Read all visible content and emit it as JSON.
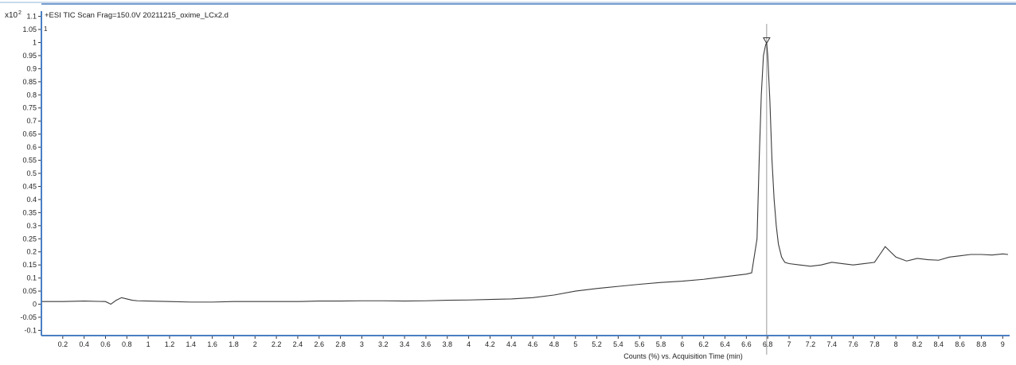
{
  "chart_data": {
    "type": "line",
    "title": "+ESI TIC Scan Frag=150.0V 20211215_oxime_LCx2.d",
    "ylabel_multiplier": "x10",
    "ylabel_exponent": "2",
    "panel_index": "1",
    "xlabel": "Counts (%) vs. Acquisition Time (min)",
    "xlim": [
      0,
      9.05
    ],
    "ylim": [
      -0.12,
      1.12
    ],
    "x_ticks": [
      0.2,
      0.4,
      0.6,
      0.8,
      1,
      1.2,
      1.4,
      1.6,
      1.8,
      2,
      2.2,
      2.4,
      2.6,
      2.8,
      3,
      3.2,
      3.4,
      3.6,
      3.8,
      4,
      4.2,
      4.4,
      4.6,
      4.8,
      5,
      5.2,
      5.4,
      5.6,
      5.8,
      6,
      6.2,
      6.4,
      6.6,
      6.8,
      7,
      7.2,
      7.4,
      7.6,
      7.8,
      8,
      8.2,
      8.4,
      8.6,
      8.8,
      9
    ],
    "y_ticks": [
      -0.1,
      -0.05,
      0,
      0.05,
      0.1,
      0.15,
      0.2,
      0.25,
      0.3,
      0.35,
      0.4,
      0.45,
      0.5,
      0.55,
      0.6,
      0.65,
      0.7,
      0.75,
      0.8,
      0.85,
      0.9,
      0.95,
      1,
      1.05,
      1.1
    ],
    "peak_marker": {
      "x": 6.79,
      "y": 1.0
    },
    "cursor_x": 6.79,
    "series": [
      {
        "x": [
          0,
          0.2,
          0.4,
          0.6,
          0.65,
          0.7,
          0.75,
          0.8,
          0.85,
          0.9,
          1.0,
          1.2,
          1.4,
          1.6,
          1.8,
          2.0,
          2.2,
          2.4,
          2.6,
          2.8,
          3.0,
          3.2,
          3.4,
          3.6,
          3.8,
          4.0,
          4.2,
          4.4,
          4.6,
          4.8,
          5.0,
          5.2,
          5.4,
          5.6,
          5.8,
          6.0,
          6.2,
          6.4,
          6.6,
          6.65,
          6.7,
          6.72,
          6.74,
          6.76,
          6.78,
          6.79,
          6.8,
          6.82,
          6.84,
          6.86,
          6.88,
          6.9,
          6.93,
          6.96,
          7.0,
          7.1,
          7.2,
          7.3,
          7.4,
          7.5,
          7.6,
          7.7,
          7.8,
          7.85,
          7.9,
          7.95,
          8.0,
          8.1,
          8.2,
          8.3,
          8.4,
          8.5,
          8.6,
          8.7,
          8.8,
          8.9,
          9.0,
          9.05
        ],
        "y": [
          0.01,
          0.01,
          0.012,
          0.01,
          0.0,
          0.015,
          0.025,
          0.02,
          0.015,
          0.013,
          0.012,
          0.01,
          0.008,
          0.008,
          0.01,
          0.01,
          0.01,
          0.01,
          0.012,
          0.012,
          0.013,
          0.013,
          0.012,
          0.013,
          0.015,
          0.016,
          0.018,
          0.02,
          0.025,
          0.035,
          0.05,
          0.06,
          0.068,
          0.076,
          0.083,
          0.088,
          0.095,
          0.105,
          0.115,
          0.12,
          0.25,
          0.55,
          0.8,
          0.95,
          0.99,
          1.0,
          0.95,
          0.78,
          0.55,
          0.4,
          0.3,
          0.23,
          0.18,
          0.16,
          0.155,
          0.15,
          0.145,
          0.15,
          0.16,
          0.155,
          0.15,
          0.155,
          0.16,
          0.19,
          0.22,
          0.2,
          0.18,
          0.165,
          0.175,
          0.17,
          0.168,
          0.18,
          0.185,
          0.19,
          0.19,
          0.188,
          0.192,
          0.19
        ]
      }
    ]
  }
}
